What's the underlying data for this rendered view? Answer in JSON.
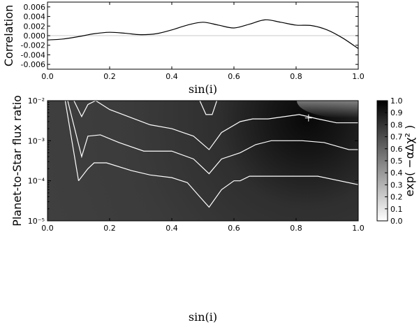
{
  "chart_data": [
    {
      "type": "line",
      "title": "",
      "xlabel": "sin(i)",
      "ylabel": "Correlation",
      "xlim": [
        0.0,
        1.0
      ],
      "ylim": [
        -0.007,
        0.007
      ],
      "x_ticks": [
        "0.0",
        "0.2",
        "0.4",
        "0.6",
        "0.8",
        "1.0"
      ],
      "y_ticks": [
        "0.006",
        "0.004",
        "0.002",
        "0.000",
        "-0.002",
        "-0.004",
        "-0.006"
      ],
      "reference_line_y": 0.0,
      "series": [
        {
          "x": [
            0.0,
            0.05,
            0.1,
            0.15,
            0.2,
            0.25,
            0.3,
            0.35,
            0.4,
            0.45,
            0.5,
            0.55,
            0.6,
            0.65,
            0.7,
            0.75,
            0.8,
            0.85,
            0.9,
            0.95,
            1.0
          ],
          "y": [
            -0.0009,
            -0.0007,
            -0.0002,
            0.0004,
            0.0007,
            0.0005,
            0.0002,
            0.0004,
            0.0012,
            0.0022,
            0.0028,
            0.0022,
            0.0016,
            0.0024,
            0.0033,
            0.0028,
            0.0022,
            0.0021,
            0.0012,
            -0.0005,
            -0.0027
          ]
        }
      ]
    },
    {
      "type": "heatmap",
      "title": "",
      "xlabel": "sin(i)",
      "ylabel": "Planet-to-Star flux ratio",
      "colorbar_label": "exp( −αΔχ² )",
      "xlim": [
        0.0,
        1.0
      ],
      "ylim": [
        1e-05,
        0.01
      ],
      "y_scale": "log",
      "x_ticks": [
        "0.0",
        "0.2",
        "0.4",
        "0.6",
        "0.8",
        "1.0"
      ],
      "y_ticks": [
        "10⁻²",
        "10⁻³",
        "10⁻⁴",
        "10⁻⁵"
      ],
      "colorbar_ticks": [
        "1.0",
        "0.9",
        "0.8",
        "0.7",
        "0.6",
        "0.5",
        "0.4",
        "0.3",
        "0.2",
        "0.1",
        "0.0"
      ],
      "colormap": "gray_r",
      "peak_marker": {
        "x": 0.84,
        "y": 0.0037,
        "symbol": "+"
      },
      "contours": [
        {
          "x": [
            0.057,
            0.1
          ],
          "y": [
            0.01,
            0.0001
          ]
        },
        {
          "x": [
            0.1,
            0.13,
            0.15,
            0.19,
            0.27,
            0.33,
            0.4,
            0.45,
            0.49,
            0.52,
            0.56,
            0.6,
            0.62,
            0.65,
            0.7,
            0.8,
            0.87,
            1.0
          ],
          "y": [
            0.0001,
            0.0002,
            0.00028,
            0.00028,
            0.00018,
            0.00014,
            0.00012,
            9e-05,
            4e-05,
            2.2e-05,
            6e-05,
            0.0001,
            0.0001,
            0.00013,
            0.00013,
            0.00013,
            0.00013,
            8e-05
          ]
        },
        {
          "x": [
            0.065,
            0.11,
            0.13,
            0.17,
            0.23,
            0.31,
            0.4,
            0.47,
            0.52,
            0.56,
            0.62,
            0.67,
            0.72,
            0.82,
            0.89,
            0.97,
            1.0
          ],
          "y": [
            0.01,
            0.0004,
            0.0013,
            0.0014,
            0.0009,
            0.00055,
            0.00055,
            0.00035,
            0.00015,
            0.00035,
            0.0005,
            0.0008,
            0.001,
            0.001,
            0.0009,
            0.0006,
            0.0006
          ]
        },
        {
          "x": [
            0.085,
            0.11,
            0.13,
            0.155,
            0.2,
            0.33,
            0.4,
            0.47,
            0.52,
            0.56,
            0.62,
            0.66,
            0.71,
            0.81,
            0.87,
            0.93,
            1.0
          ],
          "y": [
            0.01,
            0.004,
            0.008,
            0.01,
            0.006,
            0.0025,
            0.002,
            0.0013,
            0.0006,
            0.0016,
            0.003,
            0.0035,
            0.0035,
            0.0045,
            0.0035,
            0.0028,
            0.0028
          ]
        },
        {
          "x": [
            0.49,
            0.51,
            0.53,
            0.545
          ],
          "y": [
            0.01,
            0.0045,
            0.0045,
            0.01
          ]
        }
      ]
    }
  ]
}
